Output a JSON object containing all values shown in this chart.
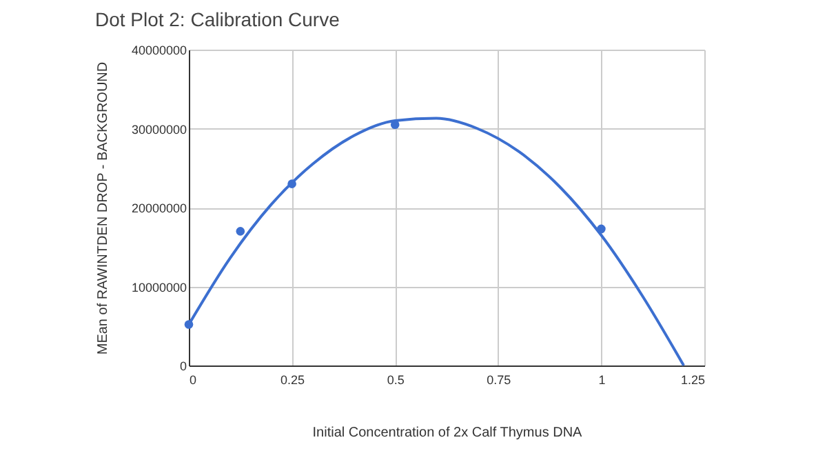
{
  "chart_data": {
    "type": "scatter",
    "title": "Dot Plot 2: Calibration Curve",
    "xlabel": "Initial Concentration of 2x Calf Thymus DNA",
    "ylabel": "MEan of RAWINTDEN DROP - BACKGROUND",
    "xlim": [
      0,
      1.25
    ],
    "xticks": [
      0,
      0.25,
      0.5,
      0.75,
      1,
      1.25
    ],
    "ylim": [
      0,
      40000000
    ],
    "yticks": [
      0,
      10000000,
      20000000,
      30000000,
      40000000
    ],
    "grid": true,
    "marker": "circle",
    "series": [
      {
        "color": "#3c6fd0",
        "x": [
          0,
          0.125,
          0.25,
          0.5,
          1
        ],
        "values": [
          5200000,
          17000000,
          23000000,
          30500000,
          17300000
        ]
      },
      {
        "type": "line",
        "marker": "none",
        "color": "#3c6fd0",
        "x": [
          0,
          0.1,
          0.2,
          0.3,
          0.4,
          0.5,
          0.6,
          0.7,
          0.8,
          0.9,
          1.0,
          1.1,
          1.2
        ],
        "values": [
          5200000,
          13600000,
          20400000,
          25500000,
          29100000,
          31000000,
          31300000,
          30000000,
          27100000,
          22600000,
          16500000,
          8800000,
          0
        ]
      }
    ]
  }
}
